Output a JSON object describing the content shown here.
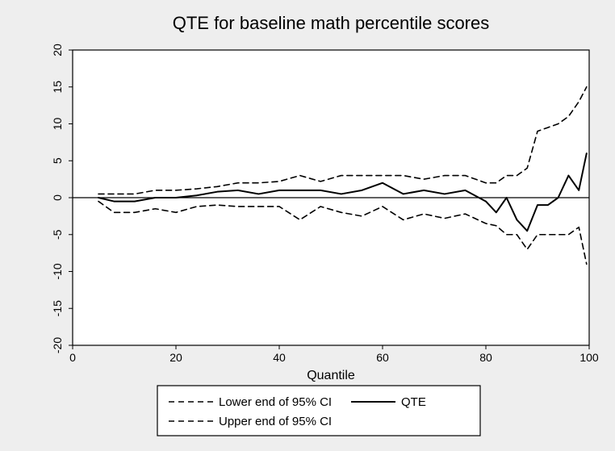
{
  "chart": {
    "type": "line",
    "title": "QTE for baseline math percentile scores",
    "title_fontsize": 22,
    "xlabel": "Quantile",
    "label_fontsize": 16,
    "outer_bg": "#eeeeee",
    "plot_bg": "#ffffff",
    "axis_color": "#000000",
    "tick_fontsize": 14,
    "xlim": [
      0,
      100
    ],
    "ylim": [
      -20,
      20
    ],
    "xticks": [
      0,
      20,
      40,
      60,
      80,
      100
    ],
    "yticks": [
      -20,
      -15,
      -10,
      -5,
      0,
      5,
      10,
      15,
      20
    ],
    "zero_line_color": "#000000",
    "zero_line_width": 1.2,
    "series": {
      "lower_ci": {
        "label": "Lower end of 95% CI",
        "color": "#000000",
        "width": 1.6,
        "dash": "7,5",
        "x": [
          5,
          8,
          12,
          16,
          20,
          24,
          28,
          32,
          36,
          40,
          44,
          48,
          52,
          56,
          60,
          64,
          68,
          72,
          76,
          80,
          82,
          84,
          86,
          88,
          90,
          92,
          94,
          96,
          98,
          99.5
        ],
        "y": [
          -0.5,
          -2,
          -2,
          -1.5,
          -2,
          -1.2,
          -1,
          -1.2,
          -1.2,
          -1.2,
          -3,
          -1.2,
          -2,
          -2.5,
          -1.2,
          -3,
          -2.2,
          -2.8,
          -2.2,
          -3.5,
          -3.8,
          -5,
          -5,
          -7,
          -5,
          -5,
          -5,
          -5,
          -4,
          -9
        ]
      },
      "qte": {
        "label": "QTE",
        "color": "#000000",
        "width": 2.0,
        "dash": "none",
        "x": [
          5,
          8,
          12,
          16,
          20,
          24,
          28,
          32,
          36,
          40,
          44,
          48,
          52,
          56,
          60,
          64,
          68,
          72,
          76,
          80,
          82,
          84,
          86,
          88,
          90,
          92,
          94,
          96,
          98,
          99.5
        ],
        "y": [
          0,
          -0.5,
          -0.5,
          0,
          0,
          0.3,
          0.8,
          1,
          0.5,
          1,
          1,
          1,
          0.5,
          1,
          2,
          0.5,
          1,
          0.5,
          1,
          -0.5,
          -2,
          0,
          -3,
          -4.5,
          -1,
          -1,
          0,
          3,
          1,
          6
        ]
      },
      "upper_ci": {
        "label": "Upper end of 95% CI",
        "color": "#000000",
        "width": 1.6,
        "dash": "7,5",
        "x": [
          5,
          8,
          12,
          16,
          20,
          24,
          28,
          32,
          36,
          40,
          44,
          48,
          52,
          56,
          60,
          64,
          68,
          72,
          76,
          80,
          82,
          84,
          86,
          88,
          90,
          92,
          94,
          96,
          98,
          99.5
        ],
        "y": [
          0.5,
          0.5,
          0.5,
          1,
          1,
          1.2,
          1.5,
          2,
          2,
          2.2,
          3,
          2.2,
          3,
          3,
          3,
          3,
          2.5,
          3,
          3,
          2,
          2,
          3,
          3,
          4,
          9,
          9.5,
          10,
          11,
          13,
          15
        ]
      }
    },
    "legend": {
      "border_color": "#000000",
      "bg": "#ffffff",
      "fontsize": 15,
      "items": [
        {
          "key": "lower_ci"
        },
        {
          "key": "qte"
        },
        {
          "key": "upper_ci"
        }
      ]
    }
  }
}
